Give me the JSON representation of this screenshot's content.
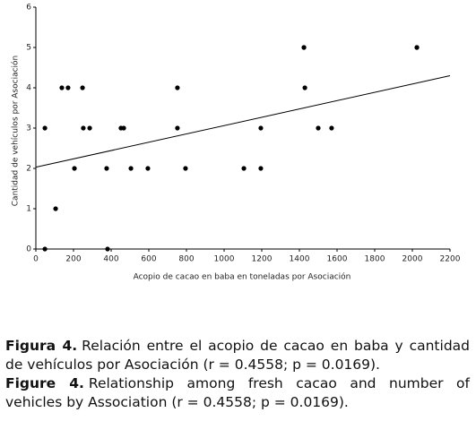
{
  "chart_data": {
    "type": "scatter",
    "x_label": "Acopio de cacao en baba en toneladas por Asociación",
    "y_label": "Cantidad de vehículos por Asociación",
    "x": [
      48,
      48,
      105,
      138,
      171,
      205,
      248,
      252,
      286,
      376,
      381,
      452,
      467,
      505,
      595,
      752,
      752,
      795,
      1105,
      1195,
      1195,
      1424,
      1424,
      1429,
      1500,
      1571,
      2024,
      2024
    ],
    "values": [
      0,
      3,
      1,
      4,
      4,
      2,
      4,
      3,
      3,
      2,
      0,
      3,
      3,
      2,
      2,
      4,
      3,
      2,
      2,
      3,
      2,
      5,
      5,
      4,
      3,
      3,
      5,
      5
    ],
    "color": "#000000",
    "fit_line": {
      "x": [
        0,
        2200
      ],
      "y": [
        2.03,
        4.3
      ]
    },
    "xlim": [
      0,
      2200
    ],
    "xticks": [
      0,
      200,
      400,
      600,
      800,
      1000,
      1200,
      1400,
      1600,
      1800,
      2000,
      2200
    ],
    "ylim": [
      0,
      6
    ],
    "yticks": [
      0,
      1,
      2,
      3,
      4,
      5,
      6
    ]
  },
  "captions": [
    {
      "label": "Figura 4.",
      "text": "Relación entre el acopio de cacao en baba y cantidad de vehículos por Asociación (r = 0.4558; p = 0.0169)."
    },
    {
      "label": "Figure 4.",
      "text": "Relationship among fresh cacao and number of vehicles by Association (r = 0.4558; p = 0.0169)."
    }
  ]
}
